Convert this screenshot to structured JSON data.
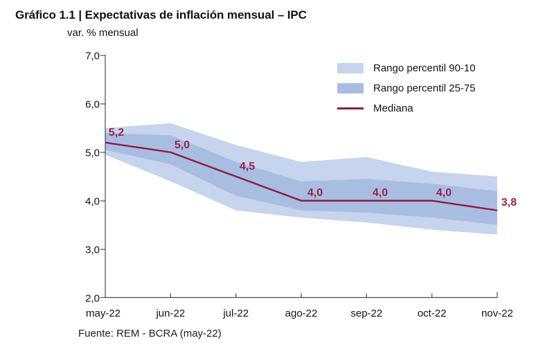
{
  "page": {
    "title": "Gráfico 1.1 | Expectativas de inflación mensual – IPC",
    "subtitle": "var. % mensual",
    "source": "Fuente: REM - BCRA (may-22)"
  },
  "legend": {
    "items": [
      {
        "label": "Rango percentil 90-10",
        "color": "#c7d4ed",
        "type": "band"
      },
      {
        "label": "Rango percentil 25-75",
        "color": "#a9bde2",
        "type": "band"
      },
      {
        "label": "Mediana",
        "color": "#8b1e42",
        "type": "line"
      }
    ]
  },
  "colors": {
    "band_90_10": "#c7d4ed",
    "band_25_75": "#a9bde2",
    "median": "#8b1e42",
    "point_labels": "#9c2350",
    "axis": "#4a4a4a"
  },
  "chart_data": {
    "type": "area",
    "title": "Gráfico 1.1 | Expectativas de inflación mensual – IPC",
    "ylabel": "var. % mensual",
    "categories": [
      "may-22",
      "jun-22",
      "jul-22",
      "ago-22",
      "sep-22",
      "oct-22",
      "nov-22"
    ],
    "series": [
      {
        "name": "Mediana",
        "values": [
          5.2,
          5.0,
          4.5,
          4.0,
          4.0,
          4.0,
          3.8
        ]
      },
      {
        "name": "Percentil 90",
        "values": [
          5.5,
          5.6,
          5.15,
          4.8,
          4.9,
          4.6,
          4.5
        ]
      },
      {
        "name": "Percentil 75",
        "values": [
          5.4,
          5.35,
          4.8,
          4.4,
          4.45,
          4.35,
          4.2
        ]
      },
      {
        "name": "Percentil 25",
        "values": [
          5.05,
          4.75,
          4.1,
          3.8,
          3.75,
          3.65,
          3.5
        ]
      },
      {
        "name": "Percentil 10",
        "values": [
          4.95,
          4.4,
          3.8,
          3.65,
          3.55,
          3.4,
          3.3
        ]
      }
    ],
    "point_labels": [
      "5,2",
      "5,0",
      "4,5",
      "4,0",
      "4,0",
      "4,0",
      "3,8"
    ],
    "ylim": [
      2.0,
      7.0
    ],
    "y_ticks": [
      7.0,
      6.0,
      5.0,
      4.0,
      3.0,
      2.0
    ],
    "y_tick_labels": [
      "7,0",
      "6,0",
      "5,0",
      "4,0",
      "3,0",
      "2,0"
    ],
    "grid": false,
    "legend_position": "top-right"
  }
}
